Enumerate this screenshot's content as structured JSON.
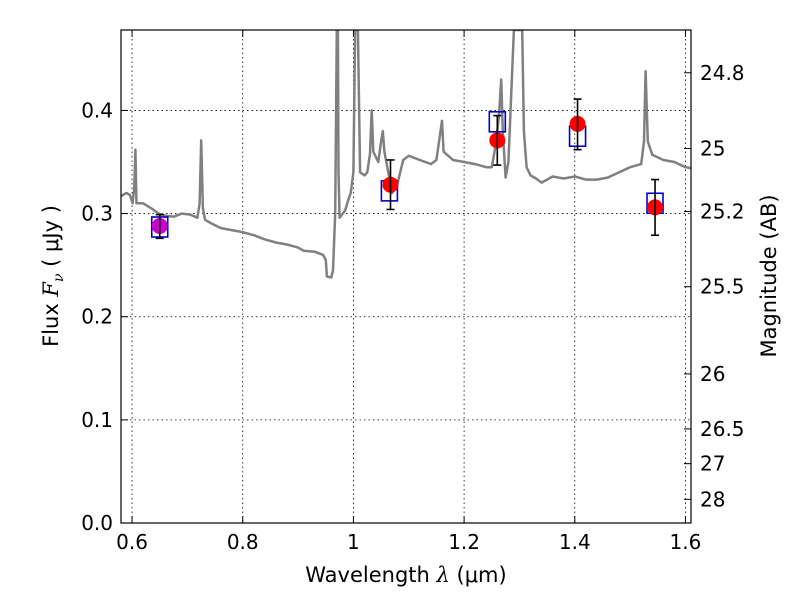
{
  "chart_data": {
    "type": "line",
    "title": "",
    "xlabel": {
      "prefix": "Wavelength  ",
      "symbol": "λ",
      "unit": " (μm)"
    },
    "ylabel": {
      "prefix": "Flux  ",
      "symbol": "F",
      "subscript": "ν",
      "unit": "  ( μJy )"
    },
    "ylabel_right": "Magnitude (AB)",
    "xlim": [
      0.58,
      1.61
    ],
    "ylim": [
      0.0,
      0.478
    ],
    "xticks": [
      0.6,
      0.8,
      1.0,
      1.2,
      1.4,
      1.6
    ],
    "xtick_labels": [
      "0.6",
      "0.8",
      "1",
      "1.2",
      "1.4",
      "1.6"
    ],
    "yticks": [
      0.0,
      0.1,
      0.2,
      0.3,
      0.4
    ],
    "ytick_labels": [
      "0.0",
      "0.1",
      "0.2",
      "0.3",
      "0.4"
    ],
    "right_ticks": [
      {
        "label": "24.8",
        "value": 24.8
      },
      {
        "label": "25",
        "value": 25.0
      },
      {
        "label": "25.2",
        "value": 25.2
      },
      {
        "label": "25.5",
        "value": 25.5
      },
      {
        "label": "26",
        "value": 26.0
      },
      {
        "label": "26.5",
        "value": 26.5
      },
      {
        "label": "27",
        "value": 27.0
      },
      {
        "label": "28",
        "value": 28.0
      }
    ],
    "grid": true,
    "series": [
      {
        "style": "spectrum",
        "color": "#808080",
        "points": [
          [
            0.58,
            0.317
          ],
          [
            0.59,
            0.32
          ],
          [
            0.596,
            0.318
          ],
          [
            0.601,
            0.31
          ],
          [
            0.604,
            0.325
          ],
          [
            0.606,
            0.362
          ],
          [
            0.608,
            0.31
          ],
          [
            0.62,
            0.31
          ],
          [
            0.635,
            0.305
          ],
          [
            0.648,
            0.3
          ],
          [
            0.66,
            0.298
          ],
          [
            0.675,
            0.297
          ],
          [
            0.69,
            0.3
          ],
          [
            0.705,
            0.299
          ],
          [
            0.718,
            0.296
          ],
          [
            0.722,
            0.31
          ],
          [
            0.725,
            0.371
          ],
          [
            0.728,
            0.305
          ],
          [
            0.732,
            0.294
          ],
          [
            0.745,
            0.29
          ],
          [
            0.76,
            0.286
          ],
          [
            0.78,
            0.284
          ],
          [
            0.8,
            0.282
          ],
          [
            0.82,
            0.279
          ],
          [
            0.84,
            0.275
          ],
          [
            0.86,
            0.272
          ],
          [
            0.88,
            0.27
          ],
          [
            0.9,
            0.267
          ],
          [
            0.91,
            0.264
          ],
          [
            0.93,
            0.263
          ],
          [
            0.945,
            0.26
          ],
          [
            0.95,
            0.255
          ],
          [
            0.952,
            0.239
          ],
          [
            0.96,
            0.238
          ],
          [
            0.963,
            0.245
          ],
          [
            0.967,
            0.3
          ],
          [
            0.97,
            0.478
          ],
          [
            0.972,
            0.478
          ],
          [
            0.973,
            0.34
          ],
          [
            0.975,
            0.296
          ],
          [
            0.985,
            0.303
          ],
          [
            0.99,
            0.312
          ],
          [
            0.995,
            0.32
          ],
          [
            1.0,
            0.34
          ],
          [
            1.003,
            0.478
          ],
          [
            1.008,
            0.478
          ],
          [
            1.012,
            0.34
          ],
          [
            1.02,
            0.337
          ],
          [
            1.025,
            0.34
          ],
          [
            1.03,
            0.358
          ],
          [
            1.033,
            0.4
          ],
          [
            1.036,
            0.36
          ],
          [
            1.045,
            0.35
          ],
          [
            1.05,
            0.37
          ],
          [
            1.053,
            0.38
          ],
          [
            1.056,
            0.36
          ],
          [
            1.07,
            0.32
          ],
          [
            1.08,
            0.33
          ],
          [
            1.09,
            0.352
          ],
          [
            1.1,
            0.356
          ],
          [
            1.12,
            0.352
          ],
          [
            1.14,
            0.348
          ],
          [
            1.15,
            0.352
          ],
          [
            1.16,
            0.39
          ],
          [
            1.163,
            0.36
          ],
          [
            1.18,
            0.352
          ],
          [
            1.2,
            0.35
          ],
          [
            1.22,
            0.348
          ],
          [
            1.24,
            0.345
          ],
          [
            1.25,
            0.345
          ],
          [
            1.255,
            0.36
          ],
          [
            1.26,
            0.38
          ],
          [
            1.263,
            0.395
          ],
          [
            1.267,
            0.43
          ],
          [
            1.27,
            0.38
          ],
          [
            1.275,
            0.335
          ],
          [
            1.28,
            0.35
          ],
          [
            1.29,
            0.478
          ],
          [
            1.3,
            0.478
          ],
          [
            1.305,
            0.478
          ],
          [
            1.308,
            0.38
          ],
          [
            1.313,
            0.345
          ],
          [
            1.32,
            0.337
          ],
          [
            1.33,
            0.334
          ],
          [
            1.34,
            0.33
          ],
          [
            1.36,
            0.336
          ],
          [
            1.38,
            0.334
          ],
          [
            1.4,
            0.336
          ],
          [
            1.42,
            0.333
          ],
          [
            1.44,
            0.333
          ],
          [
            1.46,
            0.335
          ],
          [
            1.48,
            0.34
          ],
          [
            1.5,
            0.345
          ],
          [
            1.52,
            0.348
          ],
          [
            1.525,
            0.37
          ],
          [
            1.528,
            0.438
          ],
          [
            1.532,
            0.37
          ],
          [
            1.54,
            0.357
          ],
          [
            1.56,
            0.352
          ],
          [
            1.58,
            0.35
          ],
          [
            1.6,
            0.345
          ],
          [
            1.61,
            0.344
          ]
        ]
      },
      {
        "style": "open-square",
        "color": "#0000cc",
        "points": [
          [
            0.65,
            0.287
          ],
          [
            1.065,
            0.322
          ],
          [
            1.26,
            0.389
          ],
          [
            1.405,
            0.375
          ],
          [
            1.545,
            0.31
          ]
        ]
      },
      {
        "style": "filled-circle",
        "color": "#ff0000",
        "points": [
          [
            1.067,
            0.328
          ],
          [
            1.26,
            0.371
          ],
          [
            1.405,
            0.387
          ],
          [
            1.545,
            0.306
          ]
        ]
      },
      {
        "style": "filled-circle",
        "color": "#cc00cc",
        "points": [
          [
            0.65,
            0.288
          ]
        ]
      },
      {
        "style": "errorbar",
        "color": "#000000",
        "points": [
          [
            0.65,
            0.287,
            0.276,
            0.299
          ],
          [
            1.067,
            0.328,
            0.304,
            0.352
          ],
          [
            1.26,
            0.371,
            0.347,
            0.395
          ],
          [
            1.405,
            0.387,
            0.362,
            0.411
          ],
          [
            1.545,
            0.306,
            0.279,
            0.333
          ]
        ]
      }
    ]
  }
}
